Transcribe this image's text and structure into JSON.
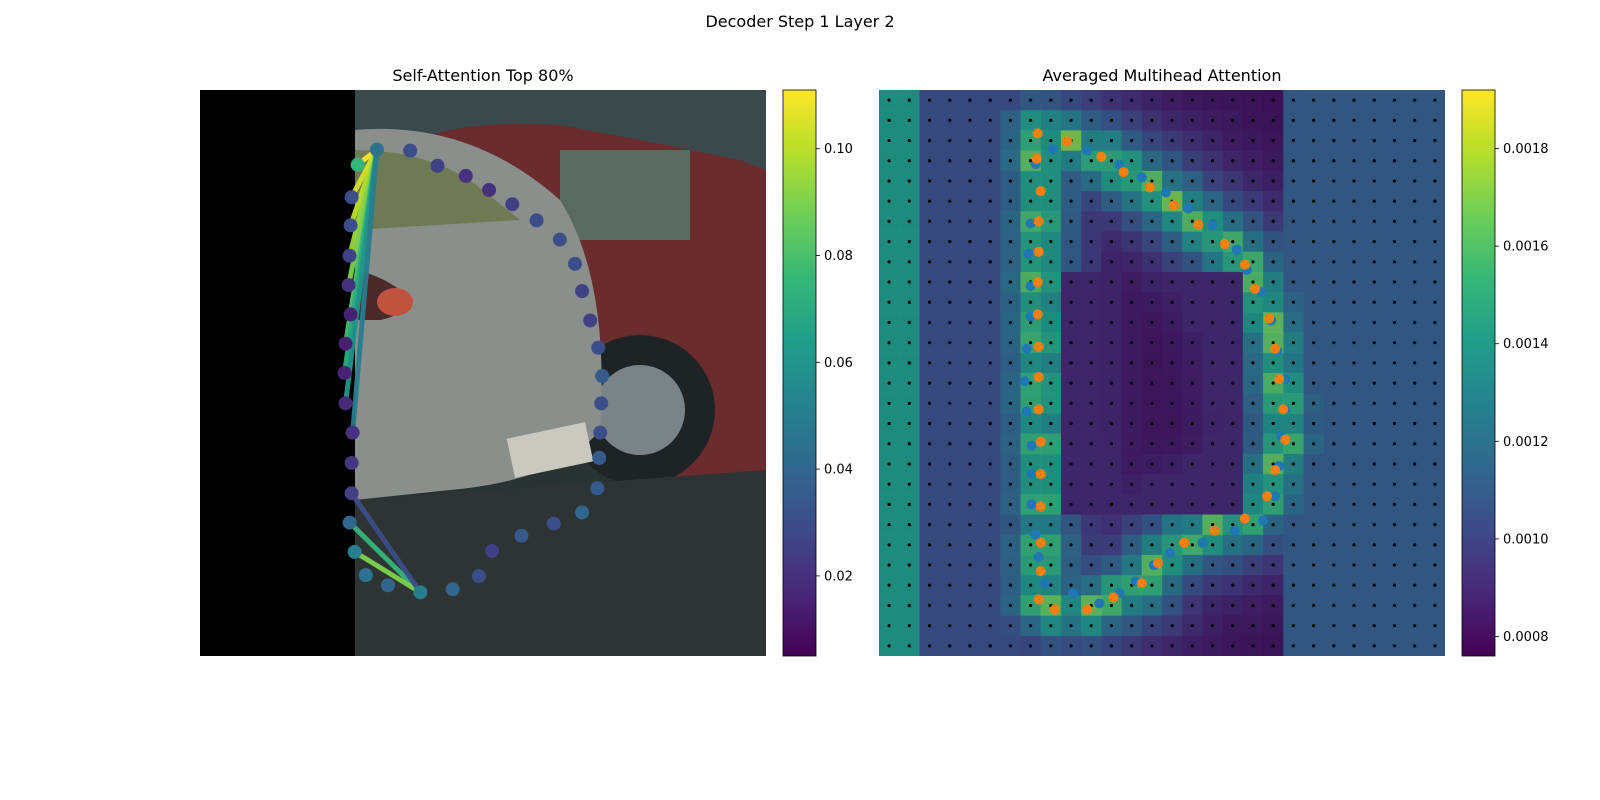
{
  "figure": {
    "suptitle": "Decoder Step 1 Layer 2"
  },
  "colors": {
    "viridis": [
      "#440154",
      "#482878",
      "#3e4a89",
      "#31688e",
      "#26828e",
      "#1f9e89",
      "#35b779",
      "#6ece58",
      "#b5de2b",
      "#fde725"
    ],
    "points_blue": "#1f77b4",
    "points_orange": "#ff7f0e",
    "grid_dot": "#000000"
  },
  "chart_data": [
    {
      "type": "scatter",
      "title": "Self-Attention Top 80%",
      "background": "photo of grey hatchback rear with red car behind, left strip black",
      "xlim": [
        0,
        56
      ],
      "ylim": [
        56,
        0
      ],
      "points": [
        {
          "x": 15.6,
          "y": 7.4,
          "w": 0.075
        },
        {
          "x": 15.0,
          "y": 10.6,
          "w": 0.03
        },
        {
          "x": 14.9,
          "y": 13.4,
          "w": 0.03
        },
        {
          "x": 14.8,
          "y": 16.4,
          "w": 0.025
        },
        {
          "x": 14.7,
          "y": 19.3,
          "w": 0.02
        },
        {
          "x": 14.9,
          "y": 22.2,
          "w": 0.015
        },
        {
          "x": 14.4,
          "y": 25.1,
          "w": 0.015
        },
        {
          "x": 14.3,
          "y": 28.0,
          "w": 0.015
        },
        {
          "x": 14.4,
          "y": 31.0,
          "w": 0.018
        },
        {
          "x": 15.1,
          "y": 33.9,
          "w": 0.02
        },
        {
          "x": 15.0,
          "y": 36.9,
          "w": 0.022
        },
        {
          "x": 15.0,
          "y": 39.9,
          "w": 0.025
        },
        {
          "x": 14.8,
          "y": 42.8,
          "w": 0.04
        },
        {
          "x": 15.3,
          "y": 45.7,
          "w": 0.05
        },
        {
          "x": 16.4,
          "y": 48.0,
          "w": 0.045
        },
        {
          "x": 18.6,
          "y": 49.0,
          "w": 0.04
        },
        {
          "x": 21.8,
          "y": 49.7,
          "w": 0.05
        },
        {
          "x": 25.0,
          "y": 49.4,
          "w": 0.04
        },
        {
          "x": 27.6,
          "y": 48.1,
          "w": 0.03
        },
        {
          "x": 28.9,
          "y": 45.6,
          "w": 0.025
        },
        {
          "x": 31.8,
          "y": 44.1,
          "w": 0.035
        },
        {
          "x": 35.0,
          "y": 42.9,
          "w": 0.03
        },
        {
          "x": 37.8,
          "y": 41.8,
          "w": 0.04
        },
        {
          "x": 39.3,
          "y": 39.4,
          "w": 0.035
        },
        {
          "x": 39.5,
          "y": 36.4,
          "w": 0.035
        },
        {
          "x": 39.6,
          "y": 33.9,
          "w": 0.03
        },
        {
          "x": 39.7,
          "y": 31.0,
          "w": 0.03
        },
        {
          "x": 39.8,
          "y": 28.3,
          "w": 0.035
        },
        {
          "x": 39.4,
          "y": 25.5,
          "w": 0.03
        },
        {
          "x": 38.6,
          "y": 22.8,
          "w": 0.025
        },
        {
          "x": 37.8,
          "y": 19.9,
          "w": 0.025
        },
        {
          "x": 37.1,
          "y": 17.2,
          "w": 0.03
        },
        {
          "x": 35.6,
          "y": 14.8,
          "w": 0.03
        },
        {
          "x": 33.3,
          "y": 12.9,
          "w": 0.03
        },
        {
          "x": 30.9,
          "y": 11.3,
          "w": 0.025
        },
        {
          "x": 28.6,
          "y": 9.9,
          "w": 0.02
        },
        {
          "x": 26.3,
          "y": 8.5,
          "w": 0.02
        },
        {
          "x": 23.5,
          "y": 7.5,
          "w": 0.025
        },
        {
          "x": 20.8,
          "y": 6.0,
          "w": 0.03
        },
        {
          "x": 17.5,
          "y": 5.9,
          "w": 0.045
        }
      ],
      "edges": [
        {
          "from": [
            21.8,
            49.7
          ],
          "to": [
            14.8,
            42.8
          ],
          "w": 0.075
        },
        {
          "from": [
            21.8,
            49.7
          ],
          "to": [
            15.3,
            45.7
          ],
          "w": 0.09
        },
        {
          "from": [
            21.8,
            49.7
          ],
          "to": [
            15.0,
            39.9
          ],
          "w": 0.03
        },
        {
          "from": [
            17.5,
            5.9
          ],
          "to": [
            15.6,
            7.4
          ],
          "w": 0.11
        },
        {
          "from": [
            17.5,
            5.9
          ],
          "to": [
            15.0,
            10.6
          ],
          "w": 0.105
        },
        {
          "from": [
            17.5,
            5.9
          ],
          "to": [
            14.9,
            13.4
          ],
          "w": 0.1
        },
        {
          "from": [
            17.5,
            5.9
          ],
          "to": [
            14.8,
            16.4
          ],
          "w": 0.095
        },
        {
          "from": [
            17.5,
            5.9
          ],
          "to": [
            14.7,
            19.3
          ],
          "w": 0.09
        },
        {
          "from": [
            17.5,
            5.9
          ],
          "to": [
            14.9,
            22.2
          ],
          "w": 0.085
        },
        {
          "from": [
            17.5,
            5.9
          ],
          "to": [
            14.4,
            25.1
          ],
          "w": 0.08
        },
        {
          "from": [
            17.5,
            5.9
          ],
          "to": [
            14.3,
            28.0
          ],
          "w": 0.07
        },
        {
          "from": [
            17.5,
            5.9
          ],
          "to": [
            14.4,
            31.0
          ],
          "w": 0.06
        },
        {
          "from": [
            17.5,
            5.9
          ],
          "to": [
            15.1,
            33.9
          ],
          "w": 0.05
        }
      ],
      "colorbar": {
        "min": 0.005,
        "max": 0.111,
        "ticks": [
          0.02,
          0.04,
          0.06,
          0.08,
          0.1
        ],
        "tick_labels": [
          "0.02",
          "0.04",
          "0.06",
          "0.08",
          "0.10"
        ]
      }
    },
    {
      "type": "heatmap",
      "title": "Averaged Multihead Attention",
      "background": "photo of grey hatchback rear with red car behind, attention overlay",
      "xlim": [
        0,
        28
      ],
      "ylim": [
        28,
        0
      ],
      "grid_size": 28,
      "orange_points": [
        {
          "x": 7.85,
          "y": 2.14
        },
        {
          "x": 9.3,
          "y": 2.54
        },
        {
          "x": 11.0,
          "y": 3.3
        },
        {
          "x": 12.1,
          "y": 4.06
        },
        {
          "x": 13.4,
          "y": 4.82
        },
        {
          "x": 14.6,
          "y": 5.7
        },
        {
          "x": 15.8,
          "y": 6.66
        },
        {
          "x": 17.1,
          "y": 7.62
        },
        {
          "x": 18.1,
          "y": 8.64
        },
        {
          "x": 18.6,
          "y": 9.84
        },
        {
          "x": 19.3,
          "y": 11.3
        },
        {
          "x": 19.6,
          "y": 12.8
        },
        {
          "x": 19.8,
          "y": 14.3
        },
        {
          "x": 20.0,
          "y": 15.8
        },
        {
          "x": 20.1,
          "y": 17.3
        },
        {
          "x": 19.6,
          "y": 18.8
        },
        {
          "x": 19.2,
          "y": 20.1
        },
        {
          "x": 18.1,
          "y": 21.2
        },
        {
          "x": 16.6,
          "y": 21.8
        },
        {
          "x": 15.1,
          "y": 22.4
        },
        {
          "x": 13.8,
          "y": 23.4
        },
        {
          "x": 13.0,
          "y": 24.4
        },
        {
          "x": 11.6,
          "y": 25.1
        },
        {
          "x": 10.3,
          "y": 25.7
        },
        {
          "x": 8.7,
          "y": 25.7
        },
        {
          "x": 7.9,
          "y": 25.2
        },
        {
          "x": 8.0,
          "y": 23.8
        },
        {
          "x": 8.0,
          "y": 22.4
        },
        {
          "x": 8.0,
          "y": 20.6
        },
        {
          "x": 8.0,
          "y": 19.0
        },
        {
          "x": 8.0,
          "y": 17.4
        },
        {
          "x": 7.9,
          "y": 15.8
        },
        {
          "x": 7.9,
          "y": 14.2
        },
        {
          "x": 7.9,
          "y": 12.7
        },
        {
          "x": 7.85,
          "y": 11.1
        },
        {
          "x": 7.85,
          "y": 9.5
        },
        {
          "x": 7.9,
          "y": 8.0
        },
        {
          "x": 7.9,
          "y": 6.5
        },
        {
          "x": 8.0,
          "y": 5.0
        },
        {
          "x": 7.8,
          "y": 3.4
        }
      ],
      "blue_points": [
        {
          "x": 7.75,
          "y": 3.66
        },
        {
          "x": 8.6,
          "y": 2.94
        },
        {
          "x": 10.3,
          "y": 3.0
        },
        {
          "x": 11.9,
          "y": 3.7
        },
        {
          "x": 13.0,
          "y": 4.32
        },
        {
          "x": 14.2,
          "y": 5.06
        },
        {
          "x": 15.3,
          "y": 5.86
        },
        {
          "x": 16.5,
          "y": 6.68
        },
        {
          "x": 17.7,
          "y": 7.9
        },
        {
          "x": 18.2,
          "y": 8.9
        },
        {
          "x": 18.9,
          "y": 10.0
        },
        {
          "x": 19.4,
          "y": 11.4
        },
        {
          "x": 19.7,
          "y": 12.9
        },
        {
          "x": 20.1,
          "y": 14.3
        },
        {
          "x": 20.1,
          "y": 15.8
        },
        {
          "x": 19.9,
          "y": 17.1
        },
        {
          "x": 19.8,
          "y": 18.6
        },
        {
          "x": 19.6,
          "y": 20.1
        },
        {
          "x": 19.0,
          "y": 21.3
        },
        {
          "x": 17.6,
          "y": 21.8
        },
        {
          "x": 16.0,
          "y": 22.4
        },
        {
          "x": 14.4,
          "y": 22.9
        },
        {
          "x": 13.6,
          "y": 23.5
        },
        {
          "x": 12.7,
          "y": 24.3
        },
        {
          "x": 11.9,
          "y": 24.9
        },
        {
          "x": 10.9,
          "y": 25.4
        },
        {
          "x": 9.6,
          "y": 24.9
        },
        {
          "x": 8.2,
          "y": 24.4
        },
        {
          "x": 7.9,
          "y": 23.1
        },
        {
          "x": 7.75,
          "y": 22.0
        },
        {
          "x": 7.55,
          "y": 20.5
        },
        {
          "x": 7.55,
          "y": 19.0
        },
        {
          "x": 7.55,
          "y": 17.6
        },
        {
          "x": 7.3,
          "y": 15.9
        },
        {
          "x": 7.2,
          "y": 14.4
        },
        {
          "x": 7.3,
          "y": 12.8
        },
        {
          "x": 7.5,
          "y": 11.2
        },
        {
          "x": 7.5,
          "y": 9.7
        },
        {
          "x": 7.4,
          "y": 8.1
        },
        {
          "x": 7.5,
          "y": 6.6
        }
      ],
      "colorbar": {
        "min": 0.00076,
        "max": 0.00192,
        "ticks": [
          0.0008,
          0.001,
          0.0012,
          0.0014,
          0.0016,
          0.0018
        ],
        "tick_labels": [
          "0.0008",
          "0.0010",
          "0.0012",
          "0.0014",
          "0.0016",
          "0.0018"
        ]
      }
    }
  ]
}
